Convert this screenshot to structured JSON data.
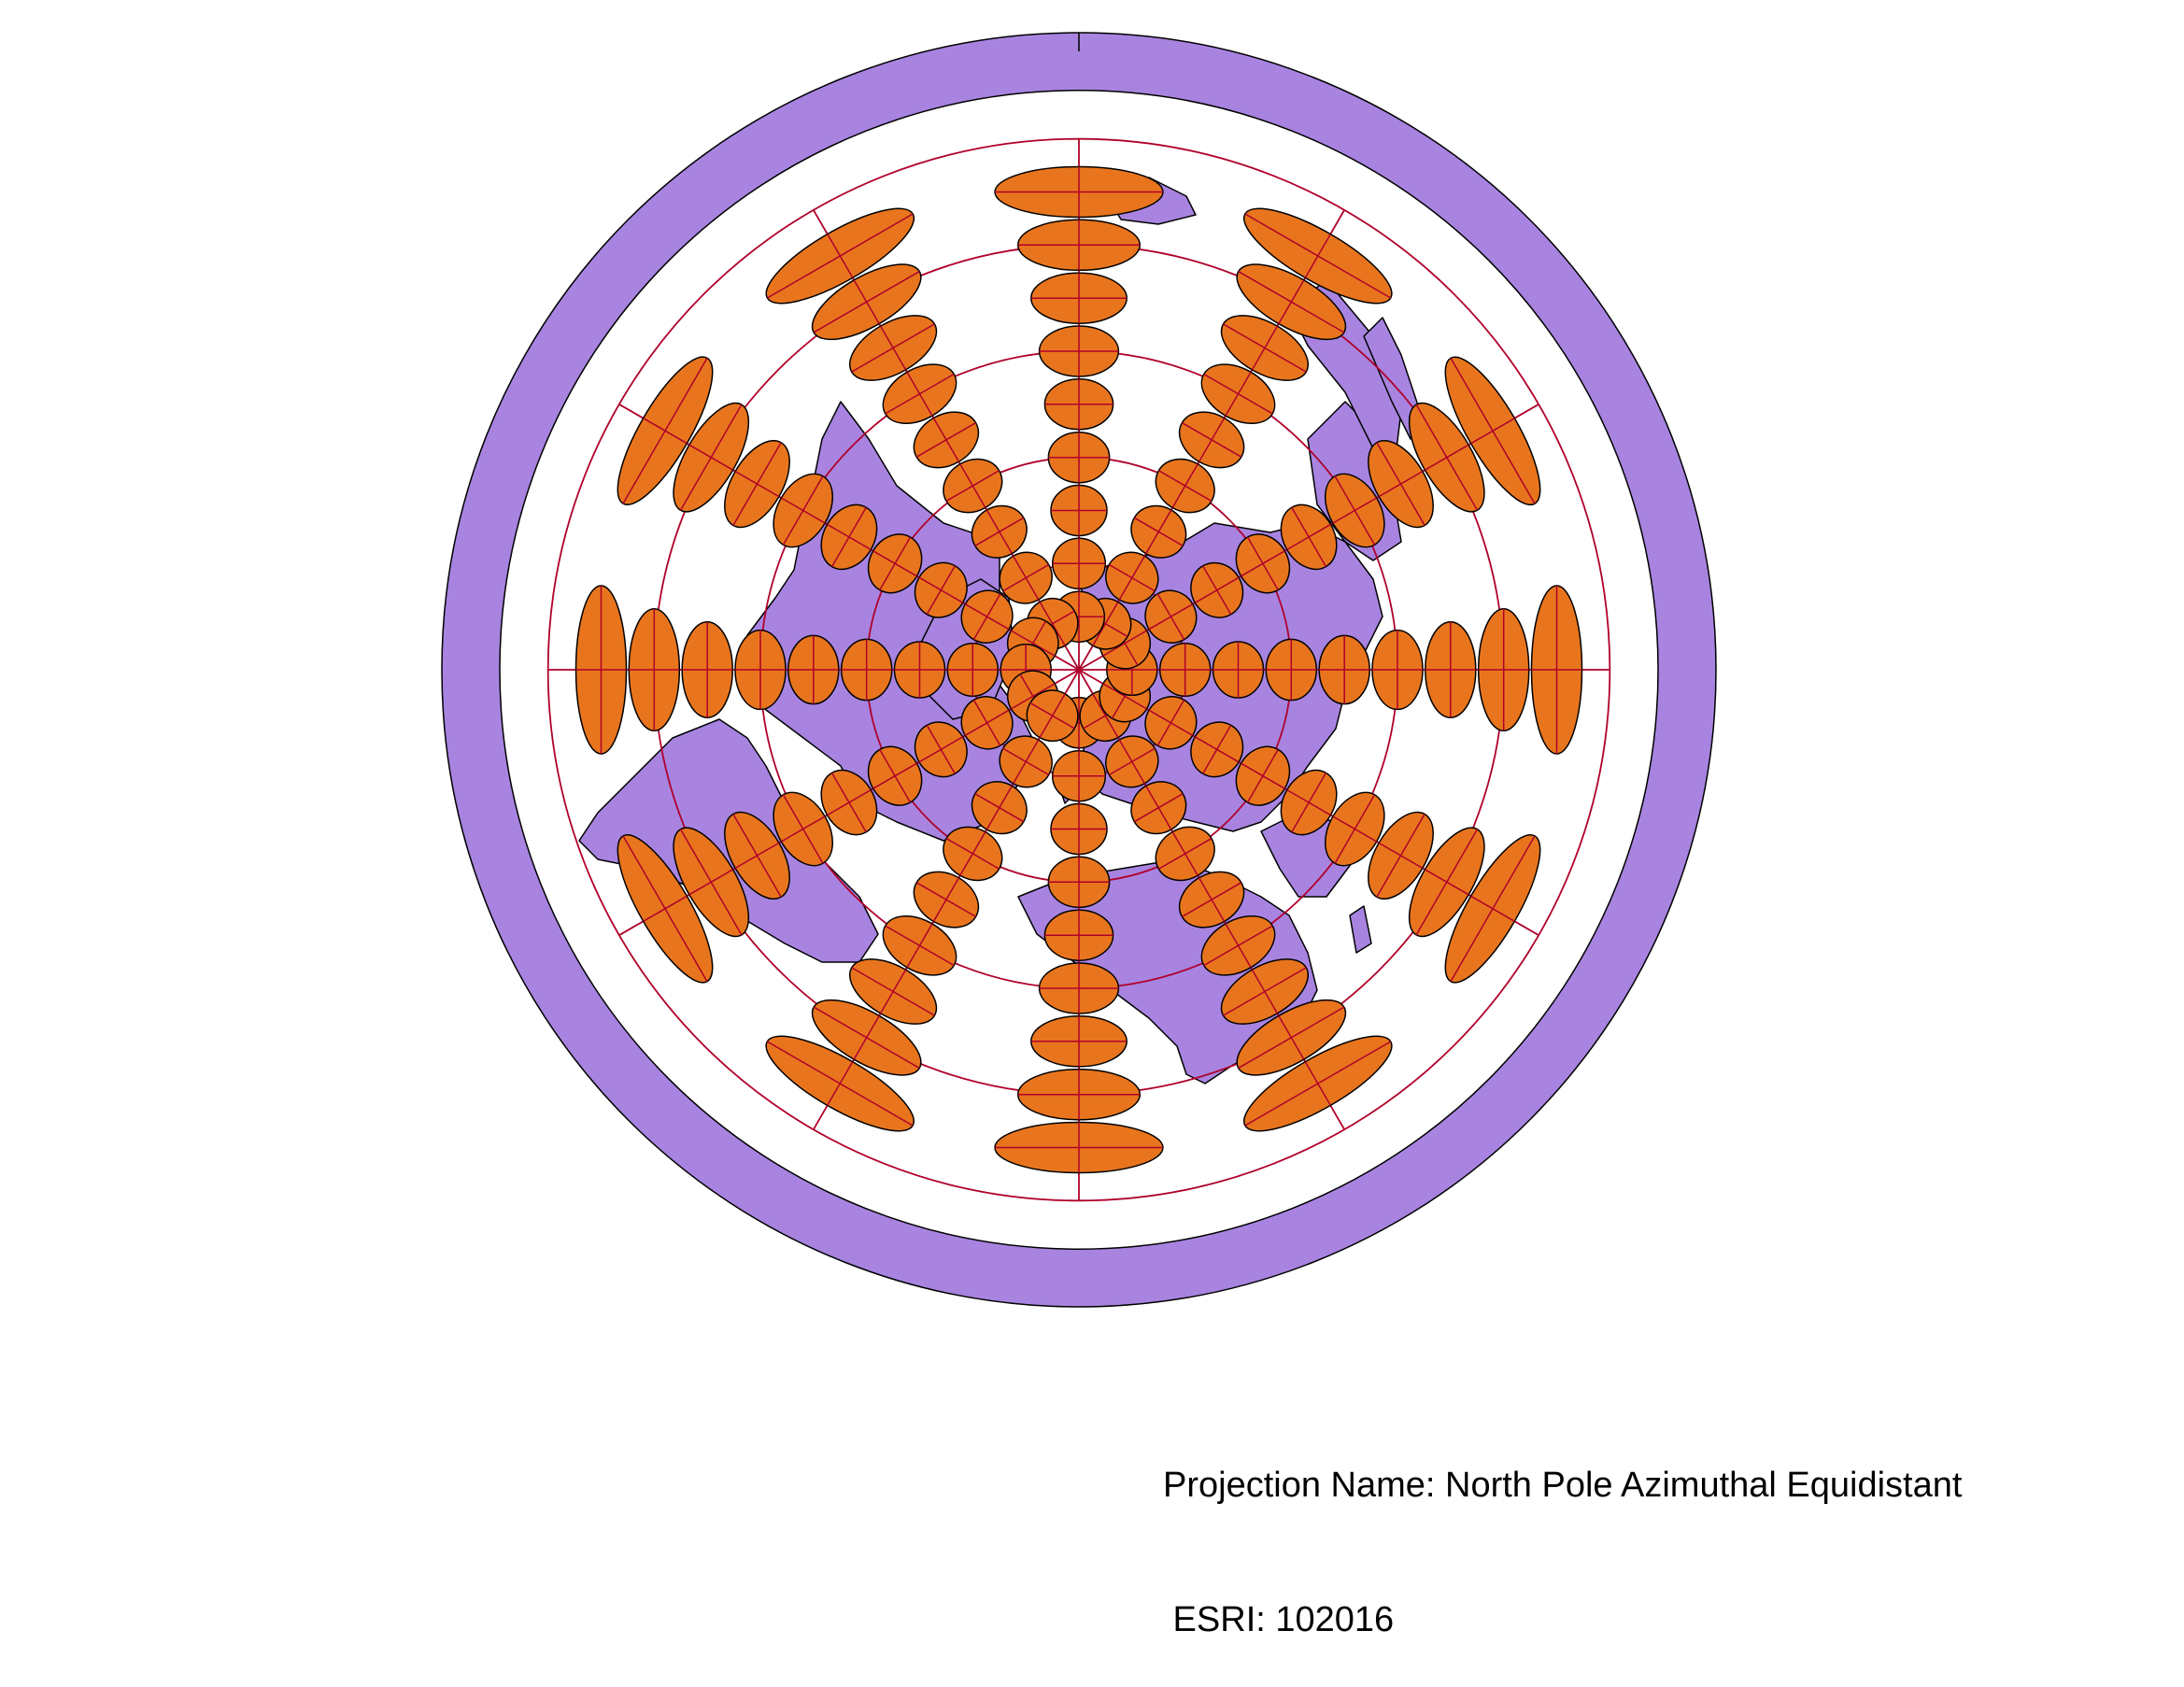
{
  "projection": {
    "name_line": "Projection Name: North Pole Azimuthal Equidistant",
    "esri_line": " ESRI: 102016"
  },
  "colors": {
    "land": "#a884e0",
    "ocean": "#ffffff",
    "outer_ring": "#a884e0",
    "ellipse_fill": "#e8751d",
    "graticule": "#b0002a",
    "outline": "#000000"
  },
  "graticule": {
    "latitudes_deg": [
      60,
      30,
      0,
      -30,
      -60
    ],
    "meridian_step_deg": 30
  },
  "tissot": {
    "latitudes_deg": [
      75,
      60,
      45,
      30,
      15,
      0,
      -15,
      -30,
      -45
    ],
    "longitudes_deg": [
      0,
      30,
      60,
      90,
      120,
      150,
      180,
      210,
      240,
      270,
      300,
      330
    ]
  }
}
